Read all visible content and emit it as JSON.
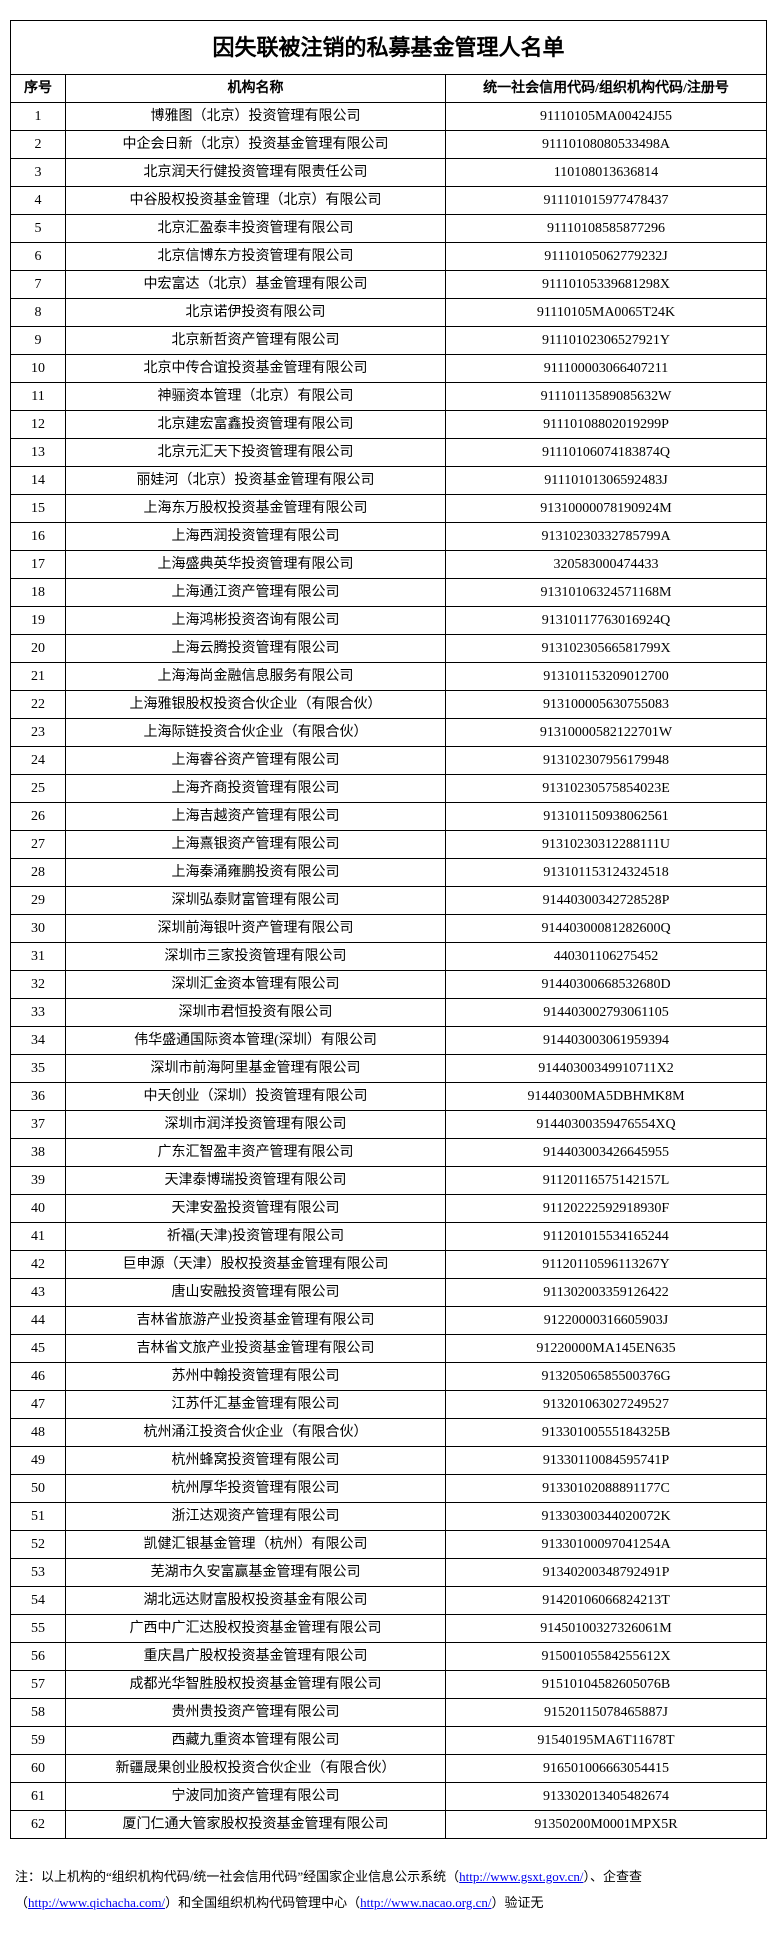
{
  "title": "因失联被注销的私募基金管理人名单",
  "columns": [
    "序号",
    "机构名称",
    "统一社会信用代码/组织机构代码/注册号"
  ],
  "rows": [
    [
      "1",
      "博雅图（北京）投资管理有限公司",
      "91110105MA00424J55"
    ],
    [
      "2",
      "中企会日新（北京）投资基金管理有限公司",
      "91110108080533498A"
    ],
    [
      "3",
      "北京润天行健投资管理有限责任公司",
      "110108013636814"
    ],
    [
      "4",
      "中谷股权投资基金管理（北京）有限公司",
      "911101015977478437"
    ],
    [
      "5",
      "北京汇盈泰丰投资管理有限公司",
      "91110108585877296"
    ],
    [
      "6",
      "北京信博东方投资管理有限公司",
      "91110105062779232J"
    ],
    [
      "7",
      "中宏富达（北京）基金管理有限公司",
      "91110105339681298X"
    ],
    [
      "8",
      "北京诺伊投资有限公司",
      "91110105MA0065T24K"
    ],
    [
      "9",
      "北京新哲资产管理有限公司",
      "91110102306527921Y"
    ],
    [
      "10",
      "北京中传合谊投资基金管理有限公司",
      "911100003066407211"
    ],
    [
      "11",
      "神骊资本管理（北京）有限公司",
      "91110113589085632W"
    ],
    [
      "12",
      "北京建宏富鑫投资管理有限公司",
      "91110108802019299P"
    ],
    [
      "13",
      "北京元汇天下投资管理有限公司",
      "91110106074183874Q"
    ],
    [
      "14",
      "丽娃河（北京）投资基金管理有限公司",
      "91110101306592483J"
    ],
    [
      "15",
      "上海东万股权投资基金管理有限公司",
      "91310000078190924M"
    ],
    [
      "16",
      "上海西润投资管理有限公司",
      "91310230332785799A"
    ],
    [
      "17",
      "上海盛典英华投资管理有限公司",
      "320583000474433"
    ],
    [
      "18",
      "上海通江资产管理有限公司",
      "91310106324571168M"
    ],
    [
      "19",
      "上海鸿彬投资咨询有限公司",
      "91310117763016924Q"
    ],
    [
      "20",
      "上海云腾投资管理有限公司",
      "91310230566581799X"
    ],
    [
      "21",
      "上海海尚金融信息服务有限公司",
      "913101153209012700"
    ],
    [
      "22",
      "上海雅银股权投资合伙企业（有限合伙）",
      "913100005630755083"
    ],
    [
      "23",
      "上海际链投资合伙企业（有限合伙）",
      "91310000582122701W"
    ],
    [
      "24",
      "上海睿谷资产管理有限公司",
      "913102307956179948"
    ],
    [
      "25",
      "上海齐商投资管理有限公司",
      "91310230575854023E"
    ],
    [
      "26",
      "上海吉越资产管理有限公司",
      "913101150938062561"
    ],
    [
      "27",
      "上海熹银资产管理有限公司",
      "91310230312288111U"
    ],
    [
      "28",
      "上海秦涌雍鹏投资有限公司",
      "913101153124324518"
    ],
    [
      "29",
      "深圳弘泰财富管理有限公司",
      "91440300342728528P"
    ],
    [
      "30",
      "深圳前海银叶资产管理有限公司",
      "91440300081282600Q"
    ],
    [
      "31",
      "深圳市三家投资管理有限公司",
      "440301106275452"
    ],
    [
      "32",
      "深圳汇金资本管理有限公司",
      "91440300668532680D"
    ],
    [
      "33",
      "深圳市君恒投资有限公司",
      "914403002793061105"
    ],
    [
      "34",
      "伟华盛通国际资本管理(深圳）有限公司",
      "914403003061959394"
    ],
    [
      "35",
      "深圳市前海阿里基金管理有限公司",
      "91440300349910711X2"
    ],
    [
      "36",
      "中天创业（深圳）投资管理有限公司",
      "91440300MA5DBHMK8M"
    ],
    [
      "37",
      "深圳市润洋投资管理有限公司",
      "91440300359476554XQ"
    ],
    [
      "38",
      "广东汇智盈丰资产管理有限公司",
      "914403003426645955"
    ],
    [
      "39",
      "天津泰博瑞投资管理有限公司",
      "91120116575142157L"
    ],
    [
      "40",
      "天津安盈投资管理有限公司",
      "91120222592918930F"
    ],
    [
      "41",
      "祈福(天津)投资管理有限公司",
      "911201015534165244"
    ],
    [
      "42",
      "巨申源（天津）股权投资基金管理有限公司",
      "91120110596113267Y"
    ],
    [
      "43",
      "唐山安融投资管理有限公司",
      "911302003359126422"
    ],
    [
      "44",
      "吉林省旅游产业投资基金管理有限公司",
      "91220000316605903J"
    ],
    [
      "45",
      "吉林省文旅产业投资基金管理有限公司",
      "91220000MA145EN635"
    ],
    [
      "46",
      "苏州中翰投资管理有限公司",
      "91320506585500376G"
    ],
    [
      "47",
      "江苏仟汇基金管理有限公司",
      "913201063027249527"
    ],
    [
      "48",
      "杭州涌江投资合伙企业（有限合伙）",
      "91330100555184325B"
    ],
    [
      "49",
      "杭州蜂窝投资管理有限公司",
      "91330110084595741P"
    ],
    [
      "50",
      "杭州厚华投资管理有限公司",
      "91330102088891177C"
    ],
    [
      "51",
      "浙江达观资产管理有限公司",
      "91330300344020072K"
    ],
    [
      "52",
      "凯健汇银基金管理（杭州）有限公司",
      "91330100097041254A"
    ],
    [
      "53",
      "芜湖市久安富赢基金管理有限公司",
      "91340200348792491P"
    ],
    [
      "54",
      "湖北远达财富股权投资基金有限公司",
      "91420106066824213T"
    ],
    [
      "55",
      "广西中广汇达股权投资基金管理有限公司",
      "91450100327326061M"
    ],
    [
      "56",
      "重庆昌广股权投资基金管理有限公司",
      "91500105584255612X"
    ],
    [
      "57",
      "成都光华智胜股权投资基金管理有限公司",
      "91510104582605076B"
    ],
    [
      "58",
      "贵州贵投资产管理有限公司",
      "91520115078465887J"
    ],
    [
      "59",
      "西藏九重资本管理有限公司",
      "91540195MA6T11678T"
    ],
    [
      "60",
      "新疆晟果创业股权投资合伙企业（有限合伙）",
      "916501006663054415"
    ],
    [
      "61",
      "宁波同加资产管理有限公司",
      "913302013405482674"
    ],
    [
      "62",
      "厦门仁通大管家股权投资基金管理有限公司",
      "91350200M0001MPX5R"
    ]
  ],
  "footnote": {
    "prefix": "注：以上机构的“组织机构代码/统一社会信用代码”经国家企业信息公示系统（",
    "link1_text": "http://www.gsxt.gov.cn/",
    "mid1": "）、企查查（",
    "link2_text": "http://www.qichacha.com/",
    "mid2": "）和全国组织机构代码管理中心（",
    "link3_text": "http://www.nacao.org.cn/",
    "suffix": "）验证无"
  }
}
